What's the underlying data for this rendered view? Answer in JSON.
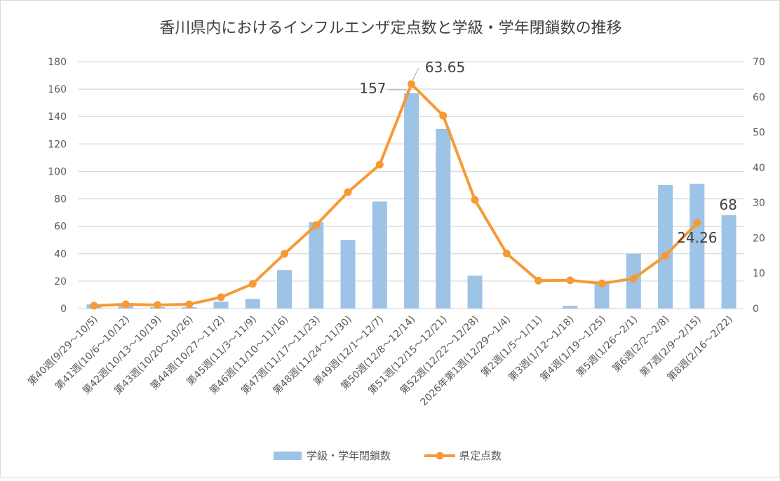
{
  "chart_data": {
    "type": "bar+line",
    "title": "香川県内におけるインフルエンザ定点数と学級・学年閉鎖数の推移",
    "categories": [
      "第40週(9/29～10/5)",
      "第41週(10/6～10/12)",
      "第42週(10/13～10/19)",
      "第43週(10/20～10/26)",
      "第44週(10/27～11/2)",
      "第45週(11/3～11/9)",
      "第46週(11/10～11/16)",
      "第47週(11/17～11/23)",
      "第48週(11/24～11/30)",
      "第49週(12/1～12/7)",
      "第50週(12/8～12/14)",
      "第51週(12/15～12/21)",
      "第52週(12/22～12/28)",
      "2026年第1週(12/29～1/4)",
      "第2週(1/5～1/11)",
      "第3週(1/12～1/18)",
      "第4週(1/19～1/25)",
      "第5週(1/26～2/1)",
      "第6週(2/2～2/8)",
      "第7週(2/9～2/15)",
      "第8週(2/16～2/22)"
    ],
    "series": [
      {
        "name": "学級・学年閉鎖数",
        "type": "bar",
        "axis": "left",
        "color": "#9dc3e6",
        "values": [
          3,
          2,
          1,
          1,
          5,
          7,
          28,
          63,
          50,
          78,
          157,
          131,
          24,
          0,
          0,
          2,
          18,
          40,
          90,
          91,
          68
        ]
      },
      {
        "name": "県定点数",
        "type": "line",
        "axis": "right",
        "color": "#f79a35",
        "values": [
          0.8,
          1.2,
          1.0,
          1.2,
          3.2,
          7.0,
          15.5,
          23.7,
          33.0,
          40.8,
          63.65,
          54.7,
          30.8,
          15.6,
          7.9,
          8.0,
          7.1,
          8.5,
          15.0,
          24.26,
          null
        ]
      }
    ],
    "data_labels": [
      {
        "series": 0,
        "index": 10,
        "text": "157"
      },
      {
        "series": 1,
        "index": 10,
        "text": "63.65"
      },
      {
        "series": 1,
        "index": 19,
        "text": "24.26"
      },
      {
        "series": 0,
        "index": 20,
        "text": "68"
      }
    ],
    "y_left": {
      "min": 0,
      "max": 180,
      "step": 20,
      "ticks": [
        "0",
        "20",
        "40",
        "60",
        "80",
        "100",
        "120",
        "140",
        "160",
        "180"
      ]
    },
    "y_right": {
      "min": 0,
      "max": 70,
      "step": 10,
      "ticks": [
        "0",
        "10",
        "20",
        "30",
        "40",
        "50",
        "60",
        "70"
      ]
    },
    "grid": true,
    "legend": "bottom"
  }
}
